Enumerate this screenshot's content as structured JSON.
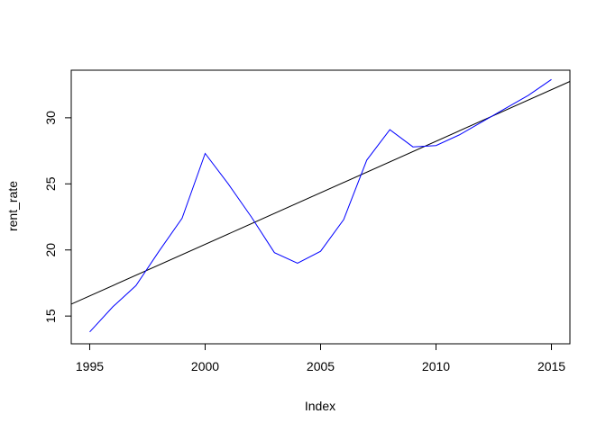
{
  "chart_data": {
    "type": "line",
    "title": "",
    "xlabel": "Index",
    "ylabel": "rent_rate",
    "xlim": [
      1994.2,
      2015.8
    ],
    "ylim": [
      12.9,
      33.6
    ],
    "xticks": [
      1995,
      2000,
      2005,
      2010,
      2015
    ],
    "yticks": [
      15,
      20,
      25,
      30
    ],
    "grid": false,
    "legend": "none",
    "colors": {
      "series": "#0000ff",
      "trend": "#000000",
      "axis": "#000000"
    },
    "series": [
      {
        "x": [
          1995,
          1996,
          1997,
          1998,
          1999,
          2000,
          2001,
          2002,
          2003,
          2004,
          2005,
          2006,
          2007,
          2008,
          2009,
          2010,
          2011,
          2012,
          2013,
          2014,
          2015
        ],
        "values": [
          13.8,
          15.7,
          17.3,
          19.9,
          22.4,
          27.3,
          25.0,
          22.5,
          19.8,
          19.0,
          19.9,
          22.3,
          26.8,
          29.1,
          27.8,
          27.9,
          28.7,
          29.7,
          30.7,
          31.7,
          32.9
        ]
      }
    ],
    "trendline": {
      "x": [
        1994.2,
        2015.8
      ],
      "values": [
        15.9,
        32.75
      ]
    }
  }
}
